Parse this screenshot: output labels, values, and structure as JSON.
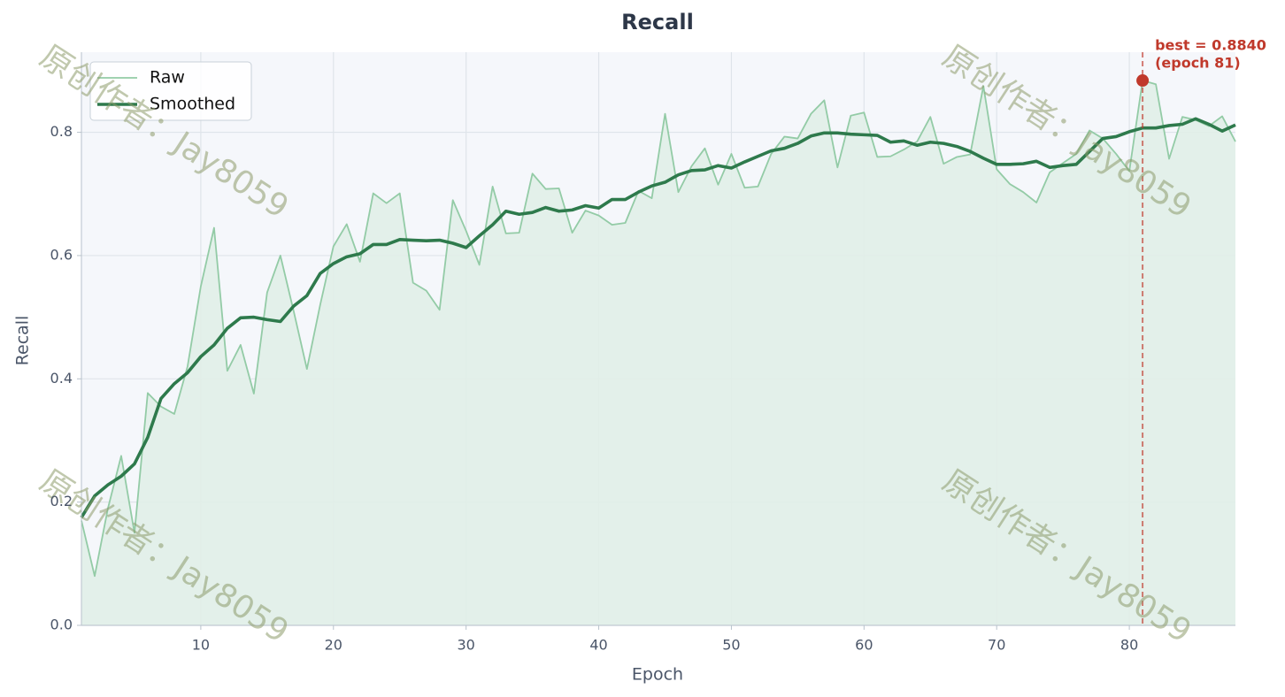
{
  "chart_data": {
    "type": "line",
    "title": "Recall",
    "xlabel": "Epoch",
    "ylabel": "Recall",
    "x": [
      1,
      2,
      3,
      4,
      5,
      6,
      7,
      8,
      9,
      10,
      11,
      12,
      13,
      14,
      15,
      16,
      17,
      18,
      19,
      20,
      21,
      22,
      23,
      24,
      25,
      26,
      27,
      28,
      29,
      30,
      31,
      32,
      33,
      34,
      35,
      36,
      37,
      38,
      39,
      40,
      41,
      42,
      43,
      44,
      45,
      46,
      47,
      48,
      49,
      50,
      51,
      52,
      53,
      54,
      55,
      56,
      57,
      58,
      59,
      60,
      61,
      62,
      63,
      64,
      65,
      66,
      67,
      68,
      69,
      70,
      71,
      72,
      73,
      74,
      75,
      76,
      77,
      78,
      79,
      80,
      81,
      82,
      83,
      84,
      85,
      86,
      87,
      88
    ],
    "series": [
      {
        "name": "Raw",
        "color": "#93cba6",
        "fill": "#e1eee8",
        "values": [
          0.17,
          0.08,
          0.19,
          0.275,
          0.15,
          0.377,
          0.355,
          0.343,
          0.42,
          0.55,
          0.645,
          0.413,
          0.455,
          0.376,
          0.54,
          0.6,
          0.51,
          0.416,
          0.52,
          0.615,
          0.651,
          0.59,
          0.701,
          0.685,
          0.701,
          0.556,
          0.543,
          0.512,
          0.69,
          0.64,
          0.585,
          0.712,
          0.636,
          0.637,
          0.733,
          0.708,
          0.709,
          0.637,
          0.673,
          0.665,
          0.65,
          0.653,
          0.705,
          0.693,
          0.83,
          0.703,
          0.745,
          0.774,
          0.715,
          0.765,
          0.71,
          0.712,
          0.765,
          0.793,
          0.79,
          0.83,
          0.852,
          0.743,
          0.827,
          0.832,
          0.76,
          0.761,
          0.772,
          0.785,
          0.825,
          0.749,
          0.76,
          0.764,
          0.875,
          0.74,
          0.716,
          0.703,
          0.686,
          0.735,
          0.75,
          0.765,
          0.803,
          0.79,
          0.765,
          0.737,
          0.884,
          0.878,
          0.757,
          0.825,
          0.82,
          0.81,
          0.826,
          0.785
        ]
      },
      {
        "name": "Smoothed",
        "color": "#2e7a4c",
        "values": [
          0.175,
          0.21,
          0.228,
          0.242,
          0.262,
          0.305,
          0.368,
          0.392,
          0.41,
          0.436,
          0.455,
          0.482,
          0.499,
          0.5,
          0.496,
          0.493,
          0.518,
          0.535,
          0.571,
          0.587,
          0.598,
          0.603,
          0.618,
          0.618,
          0.626,
          0.625,
          0.624,
          0.625,
          0.62,
          0.613,
          0.632,
          0.65,
          0.672,
          0.667,
          0.67,
          0.678,
          0.672,
          0.674,
          0.681,
          0.677,
          0.691,
          0.691,
          0.703,
          0.713,
          0.719,
          0.731,
          0.738,
          0.739,
          0.746,
          0.742,
          0.752,
          0.761,
          0.77,
          0.774,
          0.782,
          0.794,
          0.799,
          0.799,
          0.797,
          0.796,
          0.795,
          0.784,
          0.786,
          0.779,
          0.784,
          0.782,
          0.777,
          0.769,
          0.758,
          0.748,
          0.748,
          0.749,
          0.753,
          0.743,
          0.746,
          0.748,
          0.769,
          0.79,
          0.793,
          0.801,
          0.807,
          0.807,
          0.811,
          0.813,
          0.822,
          0.813,
          0.802,
          0.812
        ]
      }
    ],
    "best": {
      "index": 80,
      "color": "#c0392b",
      "label": "best = 0.8840",
      "sublabel": "(epoch 81)"
    },
    "watermark": "原创作者：Jay8059",
    "xlim": [
      1,
      88
    ],
    "ylim": [
      0,
      0.93
    ],
    "xticks": [
      10,
      20,
      30,
      40,
      50,
      60,
      70,
      80
    ],
    "yticks": [
      {
        "value": 0,
        "label": "0.0"
      },
      0.2,
      0.4,
      0.6,
      0.8
    ],
    "grid": true,
    "legend": "upper left"
  }
}
